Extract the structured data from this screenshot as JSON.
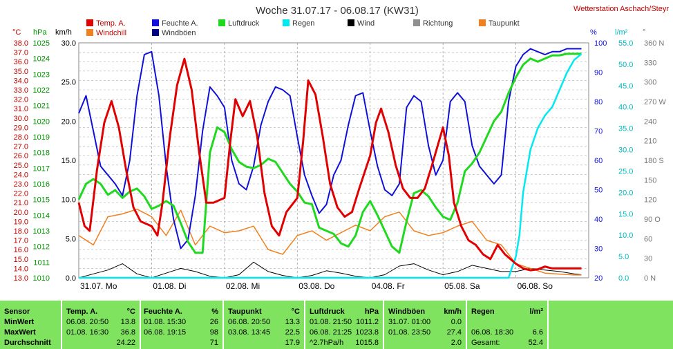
{
  "header": {
    "title": "Woche 31.07.17 - 06.08.17 (KW31)",
    "station": "Wetterstation Aschach/Steyr"
  },
  "legend": [
    {
      "label": "Temp. A.",
      "color": "#e00000"
    },
    {
      "label": "Feuchte A.",
      "color": "#1010d8"
    },
    {
      "label": "Luftdruck",
      "color": "#20d820"
    },
    {
      "label": "Regen",
      "color": "#00e8f0"
    },
    {
      "label": "Wind",
      "color": "#000000"
    },
    {
      "label": "Richtung",
      "color": "#909090"
    },
    {
      "label": "Taupunkt",
      "color": "#f08020"
    },
    {
      "label": "Windchill",
      "color": "#f08020"
    },
    {
      "label": "Windböen",
      "color": "#000080"
    }
  ],
  "axes": {
    "temp_unit": "°C",
    "press_unit": "hPa",
    "wind_unit": "km/h",
    "hum_unit": "%",
    "rain_unit": "l/m²",
    "dir_unit": "°",
    "temp_ticks": [
      "38.0",
      "37.0",
      "36.0",
      "35.0",
      "34.0",
      "33.0",
      "32.0",
      "31.0",
      "30.0",
      "29.0",
      "28.0",
      "27.0",
      "26.0",
      "25.0",
      "24.0",
      "23.0",
      "22.0",
      "21.0",
      "20.0",
      "19.0",
      "18.0",
      "17.0",
      "16.0",
      "15.0",
      "14.0",
      "13.0"
    ],
    "press_ticks": [
      "1025",
      "1024",
      "1023",
      "1022",
      "1021",
      "1020",
      "1019",
      "1018",
      "1017",
      "1016",
      "1015",
      "1014",
      "1013",
      "1012",
      "1011",
      "1010"
    ],
    "wind_ticks": [
      "30.0",
      "25.0",
      "20.0",
      "15.0",
      "10.0",
      "5.0",
      "0.0"
    ],
    "hum_ticks": [
      "100",
      "90",
      "80",
      "70",
      "60",
      "50",
      "40",
      "30",
      "20"
    ],
    "rain_ticks": [
      "55.0",
      "50.0",
      "45.0",
      "40.0",
      "35.0",
      "30.0",
      "25.0",
      "20.0",
      "15.0",
      "10.0",
      "5.0",
      "0.0"
    ],
    "dir_ticks": [
      "360 N",
      "330",
      "300",
      "270 W",
      "240",
      "210",
      "180 S",
      "150",
      "120",
      "90 O",
      "60",
      "30",
      "0 N"
    ],
    "day_labels": [
      "31.07.  Mo",
      "01.08.  Di",
      "02.08.  Mi",
      "03.08.  Do",
      "04.08.  Fr",
      "05.08.  Sa",
      "06.08.  So"
    ]
  },
  "chart_data": {
    "type": "line",
    "x": [
      "31.07.",
      "01.08.",
      "02.08.",
      "03.08.",
      "04.08.",
      "05.08.",
      "06.08."
    ],
    "ylim_temp": [
      13,
      38
    ],
    "ylim_press": [
      1010,
      1025
    ],
    "ylim_wind": [
      0,
      30
    ],
    "ylim_hum": [
      20,
      100
    ],
    "ylim_rain": [
      0,
      55
    ],
    "series": [
      {
        "name": "Temp. A.",
        "color": "#e00000",
        "axis": "temp",
        "t": [
          0,
          0.08,
          0.15,
          0.25,
          0.35,
          0.45,
          0.55,
          0.65,
          0.75,
          0.85,
          1.0,
          1.08,
          1.15,
          1.25,
          1.35,
          1.45,
          1.55,
          1.65,
          1.75,
          1.85,
          2.0,
          2.08,
          2.15,
          2.25,
          2.35,
          2.45,
          2.55,
          2.65,
          2.75,
          2.85,
          3.0,
          3.08,
          3.15,
          3.25,
          3.35,
          3.45,
          3.55,
          3.65,
          3.75,
          3.85,
          4.0,
          4.08,
          4.15,
          4.25,
          4.35,
          4.45,
          4.55,
          4.65,
          4.75,
          4.85,
          5.0,
          5.08,
          5.15,
          5.25,
          5.35,
          5.45,
          5.55,
          5.65,
          5.75,
          5.85,
          6.0,
          6.1,
          6.2,
          6.3,
          6.4,
          6.5,
          6.6,
          6.7,
          6.8,
          6.9
        ],
        "v": [
          21.0,
          18.5,
          18.0,
          24.5,
          29.5,
          31.8,
          29.0,
          24.5,
          20.5,
          19.0,
          18.5,
          17.5,
          21.0,
          28.0,
          33.5,
          36.3,
          33.0,
          26.5,
          21.0,
          21.0,
          21.5,
          27.5,
          32.0,
          30.2,
          31.8,
          28.0,
          22.0,
          18.5,
          17.5,
          20.0,
          21.5,
          27.5,
          34.0,
          32.5,
          28.0,
          23.0,
          20.5,
          19.5,
          20.0,
          22.5,
          26.0,
          29.5,
          31.0,
          28.5,
          25.0,
          22.5,
          21.5,
          21.5,
          22.5,
          25.0,
          29.0,
          26.0,
          21.0,
          18.5,
          17.0,
          16.5,
          15.5,
          15.0,
          16.5,
          15.5,
          14.5,
          14.0,
          13.8,
          13.9,
          14.2,
          14.0,
          14.0,
          14.0,
          14.0,
          14.0
        ]
      },
      {
        "name": "Feuchte A.",
        "color": "#1010d8",
        "axis": "hum",
        "t": [
          0,
          0.1,
          0.2,
          0.3,
          0.4,
          0.5,
          0.6,
          0.7,
          0.8,
          0.9,
          1.0,
          1.1,
          1.2,
          1.3,
          1.4,
          1.5,
          1.6,
          1.7,
          1.8,
          1.9,
          2.0,
          2.1,
          2.2,
          2.3,
          2.4,
          2.5,
          2.6,
          2.7,
          2.8,
          2.9,
          3.0,
          3.1,
          3.2,
          3.3,
          3.4,
          3.5,
          3.6,
          3.7,
          3.8,
          3.9,
          4.0,
          4.1,
          4.2,
          4.3,
          4.4,
          4.5,
          4.6,
          4.7,
          4.8,
          4.9,
          5.0,
          5.1,
          5.2,
          5.3,
          5.4,
          5.5,
          5.6,
          5.7,
          5.8,
          5.9,
          6.0,
          6.1,
          6.2,
          6.3,
          6.4,
          6.5,
          6.6,
          6.7,
          6.8,
          6.9
        ],
        "v": [
          76,
          82,
          70,
          58,
          55,
          52,
          48,
          60,
          82,
          96,
          97,
          82,
          58,
          40,
          30,
          33,
          48,
          70,
          85,
          82,
          78,
          60,
          52,
          50,
          58,
          72,
          80,
          85,
          84,
          82,
          68,
          55,
          48,
          42,
          45,
          55,
          60,
          72,
          82,
          83,
          70,
          58,
          50,
          48,
          52,
          78,
          82,
          80,
          65,
          55,
          60,
          80,
          83,
          80,
          65,
          58,
          55,
          52,
          55,
          80,
          92,
          96,
          98,
          97,
          96,
          97,
          97,
          98,
          98,
          98
        ]
      },
      {
        "name": "Luftdruck",
        "color": "#20d820",
        "axis": "press",
        "t": [
          0,
          0.1,
          0.2,
          0.3,
          0.4,
          0.5,
          0.6,
          0.7,
          0.8,
          0.9,
          1.0,
          1.1,
          1.2,
          1.3,
          1.4,
          1.5,
          1.6,
          1.7,
          1.8,
          1.9,
          2.0,
          2.1,
          2.2,
          2.3,
          2.4,
          2.5,
          2.6,
          2.7,
          2.8,
          2.9,
          3.0,
          3.1,
          3.2,
          3.3,
          3.4,
          3.5,
          3.6,
          3.7,
          3.8,
          3.9,
          4.0,
          4.1,
          4.2,
          4.3,
          4.4,
          4.5,
          4.6,
          4.7,
          4.8,
          4.9,
          5.0,
          5.1,
          5.2,
          5.3,
          5.4,
          5.5,
          5.6,
          5.7,
          5.8,
          5.9,
          6.0,
          6.1,
          6.2,
          6.3,
          6.4,
          6.5,
          6.6,
          6.7,
          6.8,
          6.9
        ],
        "v": [
          1015,
          1016,
          1016.3,
          1016,
          1015.3,
          1015.6,
          1015.1,
          1015.5,
          1015.7,
          1015.2,
          1014.4,
          1014.6,
          1014.9,
          1014.6,
          1013.5,
          1012.3,
          1011.6,
          1011.6,
          1018.0,
          1019.6,
          1019.3,
          1018.2,
          1017.4,
          1017.1,
          1017.0,
          1017.2,
          1017.6,
          1017.4,
          1016.7,
          1016.0,
          1015.5,
          1014.8,
          1014.7,
          1013.2,
          1013.0,
          1012.8,
          1012.2,
          1012.0,
          1012.7,
          1014.2,
          1014.9,
          1014.0,
          1013.0,
          1012.0,
          1011.6,
          1013.6,
          1015.4,
          1015.6,
          1015.2,
          1014.5,
          1013.9,
          1013.7,
          1014.8,
          1016.8,
          1017.3,
          1018.0,
          1019.0,
          1020.0,
          1020.6,
          1021.8,
          1022.8,
          1023.6,
          1024.0,
          1023.8,
          1024.0,
          1024.2,
          1024.2,
          1024.3,
          1024.3,
          1024.3
        ]
      },
      {
        "name": "Taupunkt",
        "color": "#f08020",
        "axis": "temp",
        "t": [
          0,
          0.2,
          0.4,
          0.6,
          0.8,
          1.0,
          1.2,
          1.4,
          1.6,
          1.8,
          2.0,
          2.2,
          2.4,
          2.6,
          2.8,
          3.0,
          3.2,
          3.4,
          3.6,
          3.8,
          4.0,
          4.2,
          4.4,
          4.6,
          4.8,
          5.0,
          5.2,
          5.4,
          5.6,
          5.8,
          6.0,
          6.2,
          6.4,
          6.6,
          6.8,
          6.9
        ],
        "v": [
          17.5,
          16.5,
          19.5,
          19.8,
          20.3,
          19.5,
          17.5,
          20.2,
          16.5,
          18.5,
          17.8,
          18.0,
          18.5,
          16.0,
          15.5,
          17.5,
          18.0,
          17.0,
          17.8,
          18.6,
          18.0,
          19.5,
          20.0,
          18.0,
          17.5,
          17.8,
          18.5,
          19.0,
          17.0,
          16.5,
          14.5,
          14.0,
          13.5,
          13.4,
          13.3,
          13.3
        ]
      },
      {
        "name": "Regen",
        "color": "#00e8f0",
        "axis": "rain",
        "t": [
          0,
          5.9,
          6.0,
          6.05,
          6.1,
          6.2,
          6.3,
          6.4,
          6.5,
          6.6,
          6.7,
          6.8,
          6.9
        ],
        "v": [
          0,
          0,
          5.0,
          10.0,
          20.0,
          30.0,
          35.0,
          38.0,
          40.0,
          44.0,
          48.0,
          51.0,
          52.4
        ]
      },
      {
        "name": "Wind",
        "color": "#000000",
        "axis": "wind",
        "t": [
          0,
          0.2,
          0.4,
          0.6,
          0.8,
          1.0,
          1.2,
          1.4,
          1.6,
          1.8,
          2.0,
          2.2,
          2.4,
          2.6,
          2.8,
          3.0,
          3.2,
          3.4,
          3.6,
          3.8,
          4.0,
          4.2,
          4.4,
          4.6,
          4.8,
          5.0,
          5.2,
          5.4,
          5.6,
          5.8,
          6.0,
          6.2,
          6.4,
          6.6,
          6.8,
          6.9
        ],
        "v": [
          0,
          0.5,
          1.0,
          1.8,
          0.5,
          0,
          0.6,
          1.2,
          0.8,
          0.2,
          0,
          0.4,
          2.0,
          0.8,
          0.3,
          0,
          0.3,
          0.9,
          0.6,
          0.2,
          0,
          0.4,
          1.5,
          1.8,
          1.0,
          0.4,
          0.8,
          1.6,
          1.2,
          0.8,
          0.8,
          1.2,
          1.0,
          0.8,
          0.5,
          0.4
        ]
      }
    ]
  },
  "stats": {
    "sensor": {
      "header": "Sensor",
      "rows": [
        "MinWert",
        "MaxWert",
        "Durchschnitt"
      ]
    },
    "temp": {
      "name": "Temp. A.",
      "unit": "°C",
      "rows": [
        [
          "06.08.  20:50",
          "13.8"
        ],
        [
          "01.08.  16:30",
          "36.8"
        ],
        [
          "",
          "24.22"
        ]
      ]
    },
    "hum": {
      "name": "Feuchte A.",
      "unit": "%",
      "rows": [
        [
          "01.08.  15:30",
          "26"
        ],
        [
          "06.08.  19:15",
          "98"
        ],
        [
          "",
          "71"
        ]
      ]
    },
    "dew": {
      "name": "Taupunkt",
      "unit": "°C",
      "rows": [
        [
          "06.08.  20:50",
          "13.3"
        ],
        [
          "03.08.  13:45",
          "22.5"
        ],
        [
          "",
          "17.9"
        ]
      ]
    },
    "press": {
      "name": "Luftdruck",
      "unit": "hPa",
      "rows": [
        [
          "01.08.  21:50",
          "1011.2"
        ],
        [
          "06.08.  21:25",
          "1023.8"
        ],
        [
          "^2.7hPa/h",
          "1015.8"
        ]
      ]
    },
    "gust": {
      "name": "Windböen",
      "unit": "km/h",
      "rows": [
        [
          "31.07.  01:00",
          "0.0"
        ],
        [
          "01.08.  23:50",
          "27.4"
        ],
        [
          "",
          "2.0"
        ]
      ]
    },
    "rain": {
      "name": "Regen",
      "unit": "l/m²",
      "rows": [
        [
          "",
          ""
        ],
        [
          "06.08.  18:30",
          "6.6"
        ],
        [
          "Gesamt:",
          "52.4"
        ]
      ]
    }
  }
}
